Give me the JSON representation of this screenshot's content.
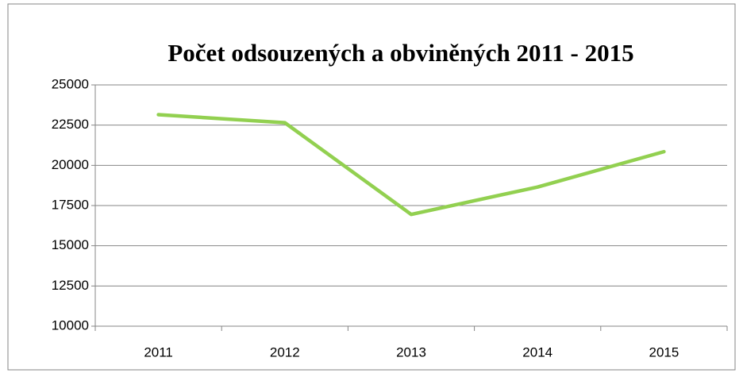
{
  "chart_data": {
    "type": "line",
    "title": "Počet odsouzených a obviněných 2011 - 2015",
    "categories": [
      "2011",
      "2012",
      "2013",
      "2014",
      "2015"
    ],
    "series": [
      {
        "name": "Počet",
        "color": "#92d050",
        "values": [
          23150,
          22650,
          16950,
          18650,
          20850
        ]
      }
    ],
    "ylim": [
      10000,
      25000
    ],
    "yticks": [
      10000,
      12500,
      15000,
      17500,
      20000,
      22500,
      25000
    ],
    "grid": true
  }
}
